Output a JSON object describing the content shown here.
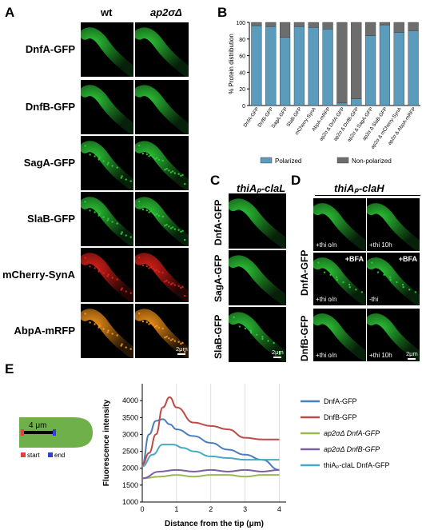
{
  "panelA": {
    "letter": "A",
    "col_headers": [
      "wt",
      "ap2σΔ"
    ],
    "rows": [
      "DnfA-GFP",
      "DnfB-GFP",
      "SagA-GFP",
      "SlaB-GFP",
      "mCherry-SynA",
      "AbpA-mRFP"
    ],
    "row_colors": [
      "#2fd23a",
      "#2fd23a",
      "#2fd23a",
      "#2fd23a",
      "#e8221c",
      "#ff9a1a"
    ],
    "scale": "2μm"
  },
  "panelB": {
    "letter": "B",
    "chart_data": {
      "type": "bar",
      "stacked": true,
      "categories": [
        "DnfA-GFP",
        "DnfB-GFP",
        "SagA-GFP",
        "SlaB-GFP",
        "mCherry-SynA",
        "AbpA-mRFP",
        "ap2σ Δ DnfA-GFP",
        "ap2σ Δ DnfB-GFP",
        "ap2σ Δ SagA-GFP",
        "ap2σ Δ SlaB-GFP",
        "ap2σ Δ mCherry-SynA",
        "ap2σ Δ AbpA-mRFP"
      ],
      "series": [
        {
          "name": "Polarized",
          "color": "#5b9cbc",
          "values": [
            96,
            95,
            82,
            95,
            94,
            92,
            3,
            8,
            84,
            97,
            88,
            90
          ]
        },
        {
          "name": "Non-polarized",
          "color": "#6d6d6d",
          "values": [
            4,
            5,
            18,
            5,
            6,
            8,
            97,
            92,
            16,
            3,
            12,
            10
          ]
        }
      ],
      "ylabel": "% Protein distribution",
      "yticks": [
        0,
        20,
        40,
        60,
        80,
        100
      ],
      "ylim": [
        0,
        100
      ],
      "legend": "bottom"
    }
  },
  "panelC": {
    "letter": "C",
    "title": "thiAₚ-claL",
    "rows": [
      "DnfA-GFP",
      "SagA-GFP",
      "SlaB-GFP"
    ],
    "scale": "2μm"
  },
  "panelD": {
    "letter": "D",
    "title": "thiAₚ-claH",
    "rows": [
      "DnfA-GFP",
      "DnfB-GFP"
    ],
    "insets": [
      "+thi o/n",
      "+thi 10h",
      "+thi o/n",
      "-thi",
      "+thi o/n",
      "+thi 10h"
    ],
    "bfa": "+BFA",
    "scale": "2μm"
  },
  "panelE": {
    "letter": "E",
    "schematic": {
      "length": "4 μm",
      "start": "start",
      "end": "end"
    },
    "chart_data": {
      "type": "line",
      "xlabel": "Distance from the tip (μm)",
      "ylabel": "Fluorescence intensity",
      "xlim": [
        0,
        4.2
      ],
      "ylim": [
        1000,
        4500
      ],
      "xticks": [
        0,
        1,
        2,
        3,
        4
      ],
      "yticks": [
        1000,
        1500,
        2000,
        2500,
        3000,
        3500,
        4000
      ],
      "grid": "vertical",
      "legend": "right",
      "series": [
        {
          "name": "DnfA-GFP",
          "color": "#4a7ebb",
          "x": [
            0,
            0.2,
            0.4,
            0.6,
            0.8,
            1.0,
            1.5,
            2.0,
            2.5,
            3.0,
            3.5,
            4.0
          ],
          "y": [
            2100,
            3000,
            3400,
            3450,
            3300,
            3150,
            2950,
            2750,
            2550,
            2400,
            2250,
            1950
          ]
        },
        {
          "name": "DnfB-GFP",
          "color": "#be4b48",
          "x": [
            0,
            0.2,
            0.4,
            0.6,
            0.8,
            1.0,
            1.5,
            2.0,
            2.5,
            3.0,
            3.5,
            4.0
          ],
          "y": [
            2100,
            2450,
            3000,
            3800,
            4100,
            3800,
            3350,
            3250,
            3150,
            2900,
            2850,
            2850
          ]
        },
        {
          "name": "ap2σΔ DnfA-GFP",
          "color": "#98b954",
          "x": [
            0,
            0.5,
            1.0,
            1.5,
            2.0,
            2.5,
            3.0,
            3.5,
            4.0
          ],
          "y": [
            1700,
            1750,
            1800,
            1750,
            1800,
            1800,
            1750,
            1800,
            1800
          ]
        },
        {
          "name": "ap2σΔ DnfB-GFP",
          "color": "#7d60a0",
          "x": [
            0,
            0.5,
            1.0,
            1.5,
            2.0,
            2.5,
            3.0,
            3.5,
            4.0
          ],
          "y": [
            1700,
            1900,
            1950,
            1900,
            1950,
            1900,
            1950,
            1900,
            1950
          ]
        },
        {
          "name": "thiAₚ-claL DnfA-GFP",
          "color": "#46aac5",
          "x": [
            0,
            0.3,
            0.6,
            0.9,
            1.2,
            1.5,
            2.0,
            2.5,
            3.0,
            3.5,
            4.0
          ],
          "y": [
            2050,
            2400,
            2700,
            2700,
            2600,
            2500,
            2350,
            2300,
            2250,
            2250,
            2250
          ]
        }
      ]
    }
  }
}
